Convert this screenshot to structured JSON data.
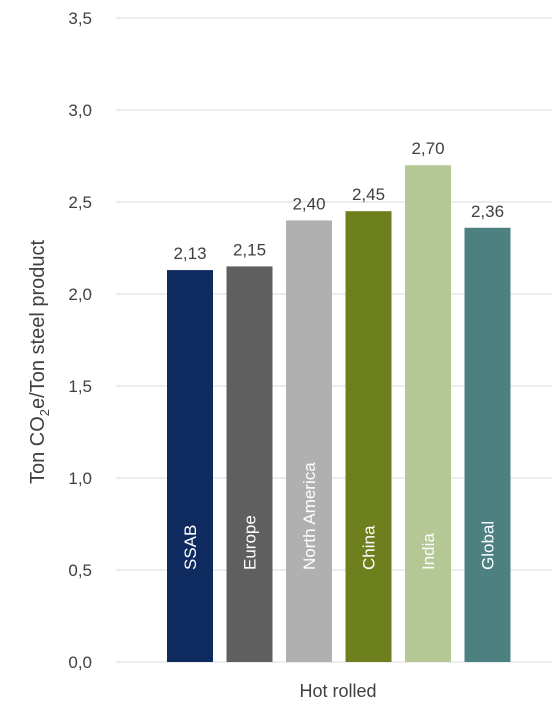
{
  "chart_data": {
    "type": "bar",
    "categories": [
      "SSAB",
      "Europe",
      "North America",
      "China",
      "India",
      "Global"
    ],
    "values": [
      2.13,
      2.15,
      2.4,
      2.45,
      2.7,
      2.36
    ],
    "data_labels": [
      "2,13",
      "2,15",
      "2,40",
      "2,45",
      "2,70",
      "2,36"
    ],
    "colors": [
      "#0e2a5e",
      "#5f5f5f",
      "#b0b0b0",
      "#6e7f1e",
      "#b5c794",
      "#4d8080"
    ],
    "xlabel": "Hot rolled",
    "ylabel": {
      "prefix": "Ton CO",
      "subscript": "2",
      "suffix": "e/Ton steel product"
    },
    "ylim": [
      0,
      3.5
    ],
    "yticks": [
      "0,0",
      "0,5",
      "1,0",
      "1,5",
      "2,0",
      "2,5",
      "3,0",
      "3,5"
    ],
    "grid": true
  }
}
